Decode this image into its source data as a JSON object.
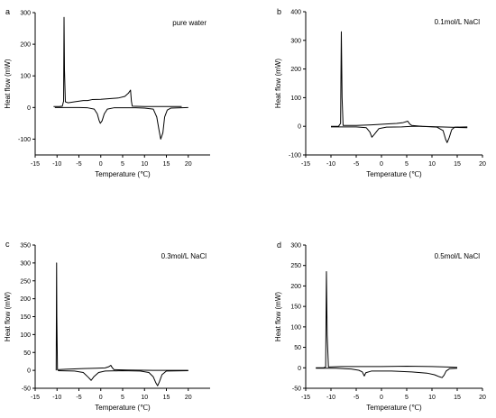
{
  "chart_data": [
    {
      "type": "line",
      "panel_letter": "a",
      "annotation": "pure water",
      "xlabel": "Temperature (℃)",
      "ylabel": "Heat flow (mW)",
      "xlim": [
        -15,
        25
      ],
      "ylim": [
        -150,
        300
      ],
      "xticks": [
        -15,
        -10,
        -5,
        0,
        5,
        10,
        15,
        20
      ],
      "yticks": [
        -100,
        0,
        100,
        200,
        300
      ],
      "series": [
        {
          "values": [
            [
              -10.8,
              3
            ],
            [
              -9.5,
              3
            ],
            [
              -8.8,
              4
            ],
            [
              -8.5,
              20
            ],
            [
              -8.4,
              285
            ],
            [
              -8.3,
              120
            ],
            [
              -8.1,
              18
            ],
            [
              -7.5,
              15
            ],
            [
              -6,
              18
            ],
            [
              -4,
              22
            ],
            [
              -3,
              22
            ],
            [
              -2,
              25
            ],
            [
              0,
              26
            ],
            [
              2,
              28
            ],
            [
              4,
              30
            ],
            [
              5.5,
              35
            ],
            [
              6.3,
              45
            ],
            [
              6.8,
              55
            ],
            [
              7.0,
              20
            ],
            [
              7.2,
              4
            ],
            [
              10,
              3
            ],
            [
              15,
              3
            ],
            [
              18.5,
              3
            ]
          ]
        },
        {
          "values": [
            [
              -10.5,
              0
            ],
            [
              -5,
              0
            ],
            [
              -3,
              -1
            ],
            [
              -1.5,
              -5
            ],
            [
              -0.8,
              -20
            ],
            [
              -0.4,
              -40
            ],
            [
              -0.1,
              -50
            ],
            [
              0.3,
              -42
            ],
            [
              0.8,
              -20
            ],
            [
              1.5,
              -5
            ],
            [
              3,
              -1
            ],
            [
              8,
              -1
            ],
            [
              10,
              -2
            ],
            [
              12,
              -5
            ],
            [
              12.8,
              -30
            ],
            [
              13.3,
              -70
            ],
            [
              13.7,
              -100
            ],
            [
              14.2,
              -80
            ],
            [
              14.6,
              -30
            ],
            [
              15.2,
              -8
            ],
            [
              16,
              -2
            ],
            [
              20,
              0
            ]
          ]
        }
      ]
    },
    {
      "type": "line",
      "panel_letter": "b",
      "annotation": "0.1mol/L NaCl",
      "xlabel": "Temperature (℃)",
      "ylabel": "Heat flow (mW)",
      "xlim": [
        -15,
        20
      ],
      "ylim": [
        -100,
        400
      ],
      "xticks": [
        -15,
        -10,
        -5,
        0,
        5,
        10,
        15,
        20
      ],
      "yticks": [
        -100,
        0,
        100,
        200,
        300,
        400
      ],
      "series": [
        {
          "values": [
            [
              -10,
              0
            ],
            [
              -8.5,
              0
            ],
            [
              -8.1,
              10
            ],
            [
              -7.95,
              330
            ],
            [
              -7.8,
              100
            ],
            [
              -7.6,
              3
            ],
            [
              -5,
              3
            ],
            [
              -2,
              5
            ],
            [
              1,
              8
            ],
            [
              3,
              10
            ],
            [
              4.3,
              13
            ],
            [
              5.2,
              18
            ],
            [
              5.6,
              8
            ],
            [
              6,
              3
            ],
            [
              8,
              0
            ],
            [
              17,
              -5
            ]
          ]
        },
        {
          "values": [
            [
              -10,
              -2
            ],
            [
              -5,
              -2
            ],
            [
              -3,
              -5
            ],
            [
              -2.3,
              -20
            ],
            [
              -1.9,
              -38
            ],
            [
              -1.4,
              -28
            ],
            [
              -0.5,
              -8
            ],
            [
              1,
              -3
            ],
            [
              4,
              -2
            ],
            [
              6,
              0
            ],
            [
              8,
              0
            ],
            [
              11,
              -3
            ],
            [
              12.2,
              -15
            ],
            [
              12.7,
              -45
            ],
            [
              13,
              -57
            ],
            [
              13.4,
              -40
            ],
            [
              13.9,
              -12
            ],
            [
              14.5,
              -3
            ],
            [
              17,
              -2
            ]
          ]
        }
      ]
    },
    {
      "type": "line",
      "panel_letter": "c",
      "annotation": "0.3mol/L NaCl",
      "xlabel": "Temperature (℃)",
      "ylabel": "Heat flow (mW)",
      "xlim": [
        -15,
        25
      ],
      "ylim": [
        -50,
        350
      ],
      "xticks": [
        -15,
        -10,
        -5,
        0,
        5,
        10,
        15,
        20
      ],
      "yticks": [
        -50,
        0,
        50,
        100,
        150,
        200,
        250,
        300,
        350
      ],
      "series": [
        {
          "values": [
            [
              -10.2,
              0
            ],
            [
              -10.1,
              300
            ],
            [
              -10.05,
              150
            ],
            [
              -9.9,
              2
            ],
            [
              -8,
              3
            ],
            [
              -4,
              5
            ],
            [
              -1,
              6
            ],
            [
              1,
              7
            ],
            [
              1.8,
              10
            ],
            [
              2.3,
              14
            ],
            [
              2.6,
              8
            ],
            [
              3,
              2
            ],
            [
              6,
              1
            ],
            [
              12,
              0
            ],
            [
              20,
              0
            ]
          ]
        },
        {
          "values": [
            [
              -9.8,
              -1
            ],
            [
              -6,
              -2
            ],
            [
              -4,
              -6
            ],
            [
              -2.8,
              -20
            ],
            [
              -2.2,
              -28
            ],
            [
              -1.6,
              -18
            ],
            [
              -0.5,
              -6
            ],
            [
              1,
              -2
            ],
            [
              5,
              -1
            ],
            [
              9,
              -2
            ],
            [
              11,
              -6
            ],
            [
              12,
              -18
            ],
            [
              12.6,
              -35
            ],
            [
              13,
              -43
            ],
            [
              13.4,
              -32
            ],
            [
              14,
              -12
            ],
            [
              15,
              -2
            ],
            [
              20,
              -1
            ]
          ]
        }
      ]
    },
    {
      "type": "line",
      "panel_letter": "d",
      "annotation": "0.5mol/L NaCl",
      "xlabel": "Temperature (℃)",
      "ylabel": "Heat flow (mW)",
      "xlim": [
        -15,
        20
      ],
      "ylim": [
        -50,
        300
      ],
      "xticks": [
        -15,
        -10,
        -5,
        0,
        5,
        10,
        15,
        20
      ],
      "yticks": [
        -50,
        0,
        50,
        100,
        150,
        200,
        250,
        300
      ],
      "series": [
        {
          "values": [
            [
              -13,
              0
            ],
            [
              -11.5,
              0
            ],
            [
              -11.05,
              2
            ],
            [
              -10.9,
              235
            ],
            [
              -10.75,
              80
            ],
            [
              -10.5,
              2
            ],
            [
              -8,
              3
            ],
            [
              -5,
              3
            ],
            [
              0,
              3
            ],
            [
              5,
              4
            ],
            [
              10,
              3
            ],
            [
              13,
              2
            ],
            [
              15,
              1
            ]
          ]
        },
        {
          "values": [
            [
              -13,
              -1
            ],
            [
              -9,
              -1
            ],
            [
              -6,
              -3
            ],
            [
              -4.5,
              -6
            ],
            [
              -3.8,
              -10
            ],
            [
              -3.4,
              -20
            ],
            [
              -3.1,
              -12
            ],
            [
              -2,
              -8
            ],
            [
              2,
              -8
            ],
            [
              6,
              -10
            ],
            [
              9,
              -13
            ],
            [
              10.5,
              -17
            ],
            [
              11.5,
              -22
            ],
            [
              12,
              -24
            ],
            [
              12.4,
              -18
            ],
            [
              12.8,
              -8
            ],
            [
              13.5,
              -2
            ],
            [
              15,
              -1
            ]
          ]
        }
      ]
    }
  ]
}
